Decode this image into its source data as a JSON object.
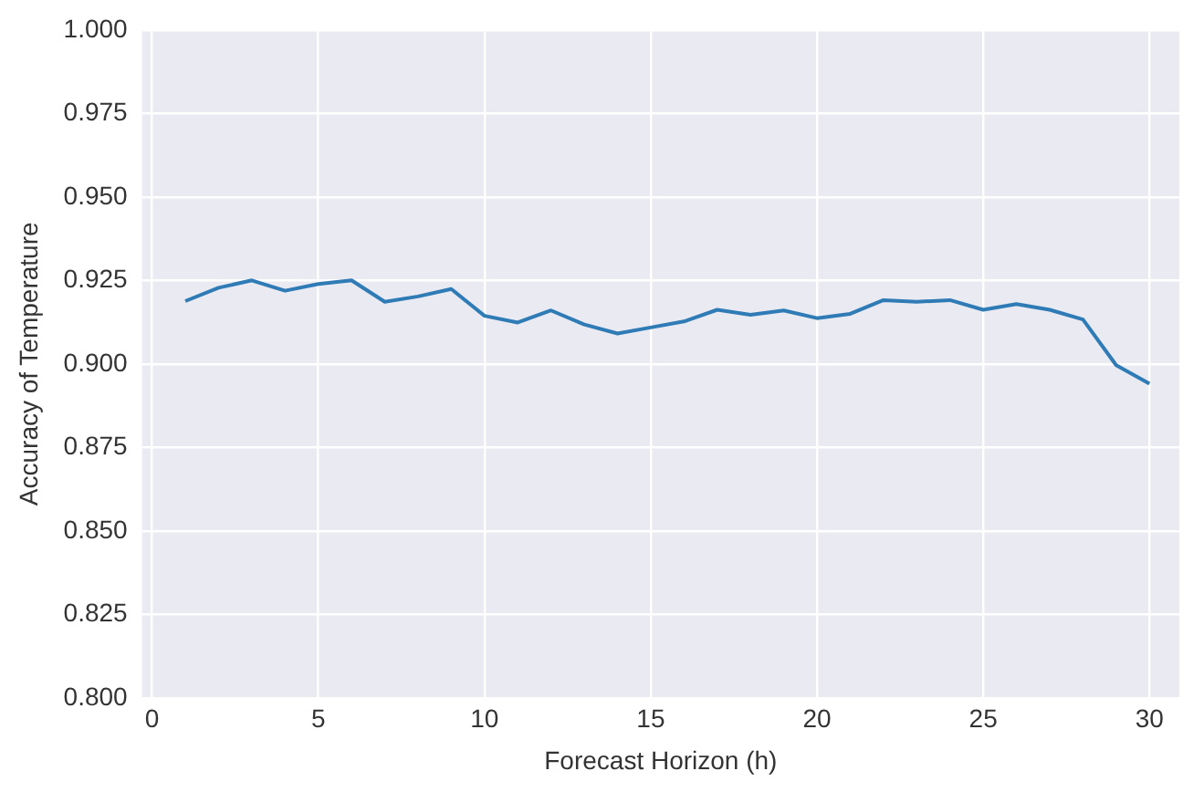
{
  "chart_data": {
    "type": "line",
    "xlabel": "Forecast Horizon (h)",
    "ylabel": "Accuracy of Temperature",
    "x": [
      1,
      2,
      3,
      4,
      5,
      6,
      7,
      8,
      9,
      10,
      11,
      12,
      13,
      14,
      15,
      16,
      17,
      18,
      19,
      20,
      21,
      22,
      23,
      24,
      25,
      26,
      27,
      28,
      29,
      30
    ],
    "series": [
      {
        "color": "#2f7bb6",
        "values": [
          0.9188,
          0.9228,
          0.925,
          0.9219,
          0.9239,
          0.925,
          0.9186,
          0.9202,
          0.9224,
          0.9144,
          0.9124,
          0.916,
          0.9118,
          0.9091,
          0.9109,
          0.9127,
          0.9162,
          0.9147,
          0.916,
          0.9137,
          0.915,
          0.9191,
          0.9186,
          0.9191,
          0.9162,
          0.9179,
          0.9162,
          0.9133,
          0.8996,
          0.8941
        ]
      }
    ],
    "xlim": [
      -0.3,
      30.9
    ],
    "xticks": [
      0,
      5,
      10,
      15,
      20,
      25,
      30
    ],
    "ylim": [
      0.8,
      1.0
    ],
    "yticks": [
      {
        "value": 0.8,
        "label": "0.800"
      },
      {
        "value": 0.825,
        "label": "0.825"
      },
      {
        "value": 0.85,
        "label": "0.850"
      },
      {
        "value": 0.875,
        "label": "0.875"
      },
      {
        "value": 0.9,
        "label": "0.900"
      },
      {
        "value": 0.925,
        "label": "0.925"
      },
      {
        "value": 0.95,
        "label": "0.950"
      },
      {
        "value": 0.975,
        "label": "0.975"
      },
      {
        "value": 1.0,
        "label": "1.000"
      }
    ],
    "grid": true,
    "legend": false,
    "marker": "none",
    "line_style": "solid"
  }
}
